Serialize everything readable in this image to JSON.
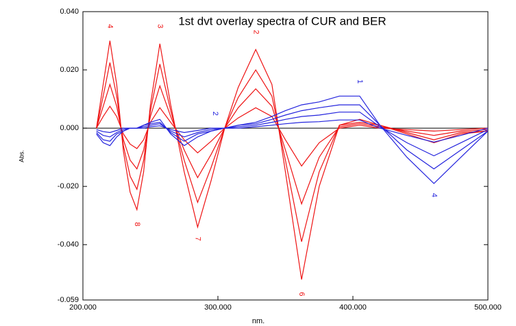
{
  "chart_data": {
    "type": "line",
    "title": "1st dvt overlay spectra of CUR and BER",
    "xlabel": "nm.",
    "ylabel": "Abs.",
    "x": [
      210,
      215,
      220,
      225,
      230,
      235,
      240,
      245,
      250,
      257,
      265,
      275,
      285,
      295,
      305,
      315,
      328,
      340,
      350,
      362,
      375,
      390,
      405,
      420,
      440,
      460,
      480,
      500
    ],
    "series": [
      {
        "color": "#ee1111",
        "values": [
          0,
          0.015,
          0.03,
          0.015,
          -0.008,
          -0.022,
          -0.028,
          -0.015,
          0.008,
          0.029,
          0.008,
          -0.015,
          -0.034,
          -0.018,
          0,
          0.014,
          0.027,
          0.015,
          -0.015,
          -0.052,
          -0.02,
          0.001,
          0.003,
          0.001,
          -0.002,
          -0.005,
          -0.002,
          -0.001
        ]
      },
      {
        "color": "#ee1111",
        "values": [
          0,
          0.011,
          0.0225,
          0.011,
          -0.006,
          -0.0165,
          -0.021,
          -0.011,
          0.006,
          0.022,
          0.006,
          -0.011,
          -0.0255,
          -0.0135,
          0,
          0.0105,
          0.02,
          0.011,
          -0.011,
          -0.039,
          -0.015,
          0.001,
          0.002,
          0.001,
          -0.0015,
          -0.004,
          -0.0015,
          -0.001
        ]
      },
      {
        "color": "#ee1111",
        "values": [
          0,
          0.0075,
          0.015,
          0.0075,
          -0.004,
          -0.011,
          -0.014,
          -0.0075,
          0.004,
          0.0145,
          0.004,
          -0.0075,
          -0.017,
          -0.009,
          0,
          0.007,
          0.0135,
          0.0075,
          -0.0075,
          -0.026,
          -0.01,
          0.0005,
          0.0015,
          0.0005,
          -0.001,
          -0.0025,
          -0.001,
          -0.0005
        ]
      },
      {
        "color": "#ee1111",
        "values": [
          0,
          0.004,
          0.0075,
          0.004,
          -0.002,
          -0.0055,
          -0.007,
          -0.004,
          0.002,
          0.007,
          0.002,
          -0.004,
          -0.0085,
          -0.0045,
          0,
          0.0035,
          0.007,
          0.004,
          -0.004,
          -0.013,
          -0.005,
          0,
          0.001,
          0,
          -0.0005,
          -0.001,
          -0.0005,
          0
        ]
      },
      {
        "color": "#2222dd",
        "values": [
          -0.002,
          -0.005,
          -0.006,
          -0.003,
          -0.001,
          0,
          0,
          0.001,
          0.002,
          0.003,
          -0.002,
          -0.006,
          -0.003,
          -0.001,
          0,
          0.001,
          0.002,
          0.004,
          0.006,
          0.008,
          0.009,
          0.011,
          0.011,
          0.001,
          -0.01,
          -0.019,
          -0.01,
          -0.001
        ]
      },
      {
        "color": "#2222dd",
        "values": [
          -0.0015,
          -0.004,
          -0.0045,
          -0.002,
          -0.001,
          0,
          0,
          0.001,
          0.0015,
          0.002,
          -0.0015,
          -0.0045,
          -0.002,
          -0.001,
          0,
          0.001,
          0.0015,
          0.003,
          0.0045,
          0.006,
          0.007,
          0.008,
          0.008,
          0.001,
          -0.0075,
          -0.014,
          -0.0075,
          -0.001
        ]
      },
      {
        "color": "#2222dd",
        "values": [
          -0.001,
          -0.0025,
          -0.003,
          -0.0015,
          -0.0005,
          0,
          0,
          0.0005,
          0.001,
          0.0015,
          -0.001,
          -0.003,
          -0.0015,
          -0.0005,
          0,
          0.0005,
          0.001,
          0.002,
          0.003,
          0.004,
          0.0045,
          0.0055,
          0.0055,
          0.0005,
          -0.005,
          -0.0095,
          -0.005,
          -0.0005
        ]
      },
      {
        "color": "#2222dd",
        "values": [
          -0.0005,
          -0.0012,
          -0.0015,
          -0.0008,
          0,
          0,
          0,
          0,
          0.0005,
          0.0008,
          -0.0005,
          -0.0015,
          -0.0008,
          0,
          0,
          0,
          0.0005,
          0.001,
          0.0015,
          0.002,
          0.0022,
          0.0028,
          0.0028,
          0,
          -0.0025,
          -0.0048,
          -0.0025,
          0
        ]
      }
    ],
    "annotations": [
      {
        "text": "4",
        "x": 220,
        "y": 0.035,
        "color": "#ee1111"
      },
      {
        "text": "3",
        "x": 257,
        "y": 0.035,
        "color": "#ee1111"
      },
      {
        "text": "2",
        "x": 328,
        "y": 0.033,
        "color": "#ee1111"
      },
      {
        "text": "8",
        "x": 240,
        "y": -0.033,
        "color": "#ee1111"
      },
      {
        "text": "7",
        "x": 285,
        "y": -0.038,
        "color": "#ee1111"
      },
      {
        "text": "6",
        "x": 362,
        "y": -0.057,
        "color": "#ee1111"
      },
      {
        "text": "1",
        "x": 405,
        "y": 0.016,
        "color": "#2222dd"
      },
      {
        "text": "2",
        "x": 298,
        "y": 0.005,
        "color": "#2222dd"
      },
      {
        "text": "4",
        "x": 460,
        "y": -0.023,
        "color": "#2222dd"
      }
    ],
    "xlim": [
      200,
      500
    ],
    "xticks": [
      {
        "value": 200,
        "label": "200.000"
      },
      {
        "value": 300,
        "label": "300.000"
      },
      {
        "value": 400,
        "label": "400.000"
      },
      {
        "value": 500,
        "label": "500.000"
      }
    ],
    "ylim": [
      -0.059,
      0.04
    ],
    "yticks": [
      {
        "value": 0.04,
        "label": "0.040"
      },
      {
        "value": 0.02,
        "label": "0.020"
      },
      {
        "value": 0,
        "label": "0.000"
      },
      {
        "value": -0.02,
        "label": "-0.020"
      },
      {
        "value": -0.04,
        "label": "-0.040"
      },
      {
        "value": -0.059,
        "label": "-0.059"
      }
    ]
  }
}
